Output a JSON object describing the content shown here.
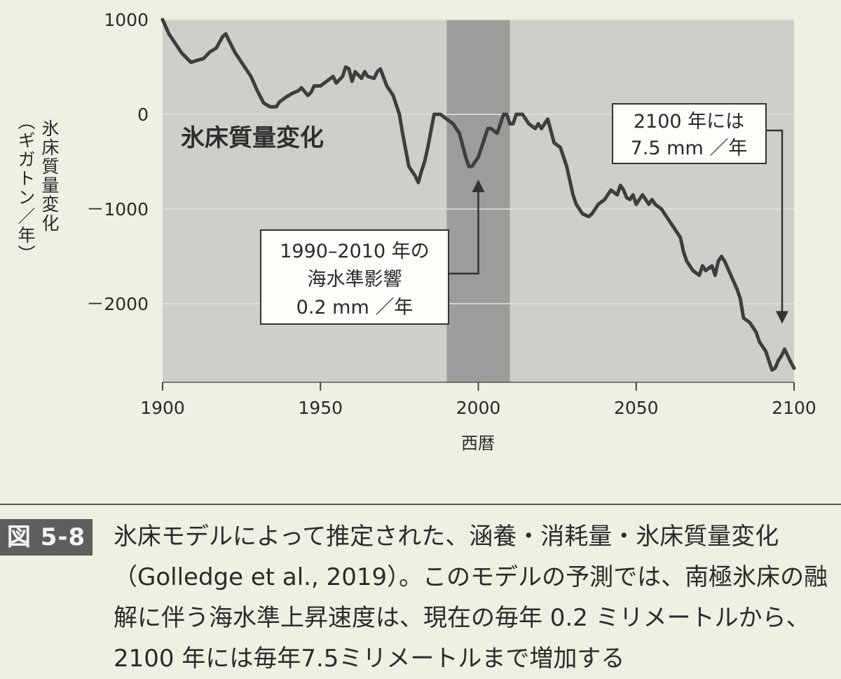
{
  "chart_data": {
    "type": "line",
    "xlabel": "西暦",
    "ylabel": "氷床質量変化（ギガトン／年）",
    "ylabel_parts": [
      "氷床質量変化",
      "（ギガトン／年）"
    ],
    "xlim": [
      1900,
      2100
    ],
    "ylim": [
      -2800,
      1000
    ],
    "xticks": [
      "1900",
      "1950",
      "2000",
      "2050",
      "2100"
    ],
    "yticks": [
      "1000",
      "0",
      "－1000",
      "－2000"
    ],
    "ytick_values": [
      1000,
      0,
      -1000,
      -2000
    ],
    "xtick_values": [
      1900,
      1950,
      2000,
      2050,
      2100
    ],
    "inner_title": "氷床質量変化",
    "highlight_band": {
      "x_start": 1990,
      "x_end": 2010
    },
    "series": [
      {
        "x": [
          1900,
          1902,
          1904,
          1906,
          1909,
          1911,
          1913,
          1915,
          1917,
          1919,
          1920,
          1921,
          1923,
          1925,
          1928,
          1930,
          1932,
          1934,
          1936,
          1937,
          1939,
          1941,
          1943,
          1944,
          1946,
          1947,
          1948,
          1950,
          1952,
          1954,
          1955,
          1957,
          1958,
          1959,
          1960,
          1961,
          1963,
          1964,
          1965,
          1967,
          1968,
          1969,
          1971,
          1973,
          1975,
          1976,
          1978,
          1979,
          1980,
          1981,
          1982,
          1983,
          1984,
          1986,
          1988,
          1990,
          1992,
          1994,
          1996,
          1997,
          1998,
          1999,
          2000,
          2001,
          2002,
          2003,
          2004,
          2006,
          2007,
          2008,
          2009,
          2010,
          2011,
          2012,
          2014,
          2016,
          2018,
          2019,
          2020,
          2021,
          2022,
          2024,
          2026,
          2027,
          2028,
          2029,
          2030,
          2031,
          2032,
          2033,
          2035,
          2036,
          2038,
          2040,
          2042,
          2044,
          2045,
          2046,
          2047,
          2048,
          2049,
          2050,
          2052,
          2054,
          2055,
          2056,
          2058,
          2060,
          2062,
          2064,
          2065,
          2066,
          2068,
          2070,
          2071,
          2072,
          2074,
          2075,
          2076,
          2077,
          2078,
          2080,
          2082,
          2083,
          2084,
          2086,
          2088,
          2089,
          2090,
          2091,
          2092,
          2093,
          2094,
          2095,
          2096,
          2097,
          2098,
          2099,
          2100
        ],
        "y": [
          1000,
          850,
          750,
          650,
          550,
          570,
          590,
          660,
          700,
          820,
          850,
          780,
          650,
          550,
          400,
          250,
          120,
          80,
          80,
          130,
          180,
          220,
          250,
          280,
          200,
          230,
          300,
          300,
          350,
          400,
          330,
          400,
          500,
          480,
          350,
          450,
          380,
          450,
          400,
          380,
          450,
          480,
          300,
          200,
          0,
          -200,
          -550,
          -600,
          -650,
          -720,
          -600,
          -500,
          -350,
          0,
          0,
          -50,
          -100,
          -200,
          -450,
          -550,
          -550,
          -500,
          -450,
          -350,
          -250,
          -150,
          -150,
          -200,
          -100,
          0,
          0,
          -100,
          -100,
          0,
          0,
          -100,
          -150,
          -100,
          -150,
          -100,
          -50,
          -300,
          -350,
          -450,
          -550,
          -700,
          -850,
          -950,
          -1000,
          -1050,
          -1080,
          -1050,
          -950,
          -900,
          -800,
          -850,
          -750,
          -800,
          -880,
          -900,
          -850,
          -950,
          -850,
          -950,
          -900,
          -950,
          -1000,
          -1100,
          -1200,
          -1300,
          -1450,
          -1550,
          -1650,
          -1700,
          -1600,
          -1650,
          -1600,
          -1700,
          -1550,
          -1500,
          -1550,
          -1700,
          -1850,
          -1950,
          -2150,
          -2200,
          -2300,
          -2400,
          -2450,
          -2500,
          -2600,
          -2700,
          -2680,
          -2600,
          -2550,
          -2480,
          -2550,
          -2620,
          -2680
        ]
      }
    ],
    "annotations": [
      {
        "lines": [
          "1990–2010 年の",
          "海水準影響",
          "0.2 mm ／年"
        ],
        "arrow_to_x": 2000,
        "arrow_to_y": -600
      },
      {
        "lines": [
          "2100 年には",
          "7.5 mm ／年"
        ],
        "arrow_to_x": 2096,
        "arrow_to_y": -2300
      }
    ]
  },
  "caption": {
    "figure_label": "図 5-8",
    "text": "氷床モデルによって推定された、涵養・消耗量・氷床質量変化（Golledge et al., 2019）。このモデルの予測では、南極氷床の融解に伴う海水準上昇速度は、現在の毎年 0.2 ミリメートルから、2100 年には毎年7.5ミリメートルまで増加する"
  },
  "colors": {
    "plot_background": "#cfcfca",
    "band": "#9c9c9a",
    "line": "#3e3e3e",
    "grid": "#e4e4dc",
    "page": "#eef0e2"
  }
}
